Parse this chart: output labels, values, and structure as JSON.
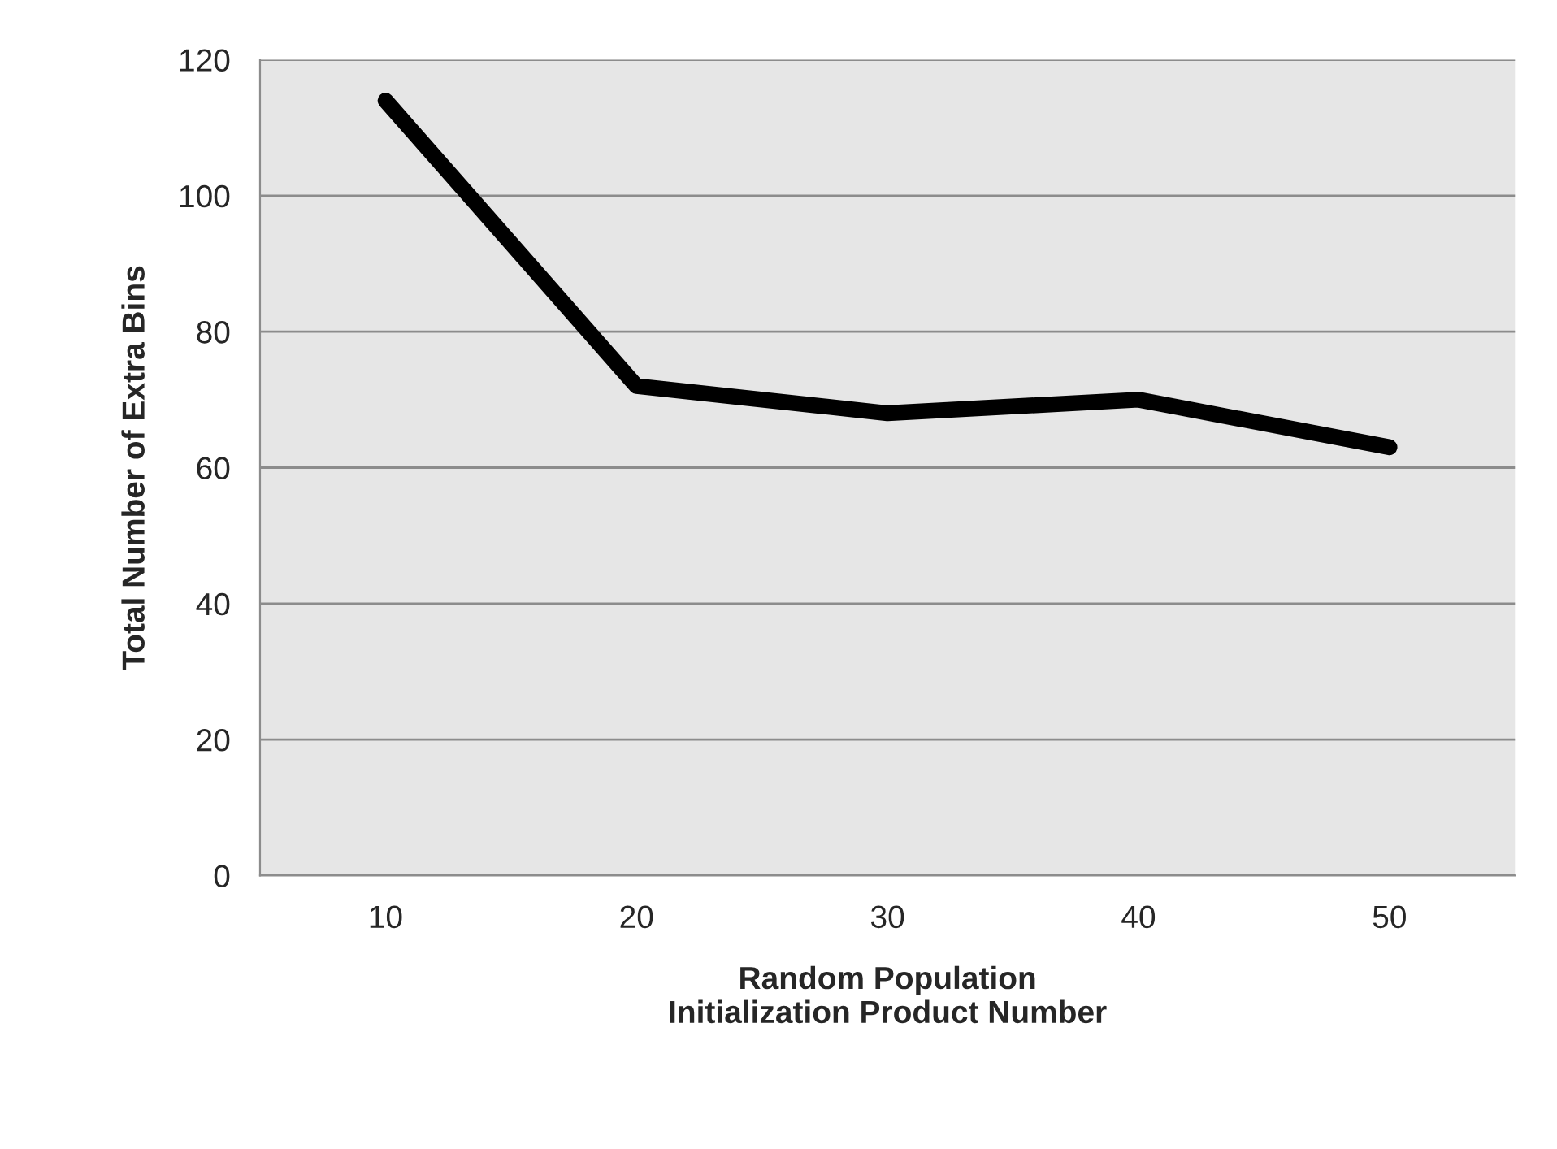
{
  "chart_data": {
    "type": "line",
    "xlabel": "Random Population\nInitialization Product Number",
    "ylabel": "Total Number of Extra Bins",
    "categories": [
      "10",
      "20",
      "30",
      "40",
      "50"
    ],
    "series": [
      {
        "color": "#000000",
        "values": [
          114,
          72,
          68,
          70,
          63
        ]
      }
    ],
    "ylim": [
      0,
      120
    ],
    "yticks": [
      0,
      20,
      40,
      60,
      80,
      100,
      120
    ],
    "grid": "y",
    "marker": "none",
    "line_style": "solid"
  }
}
